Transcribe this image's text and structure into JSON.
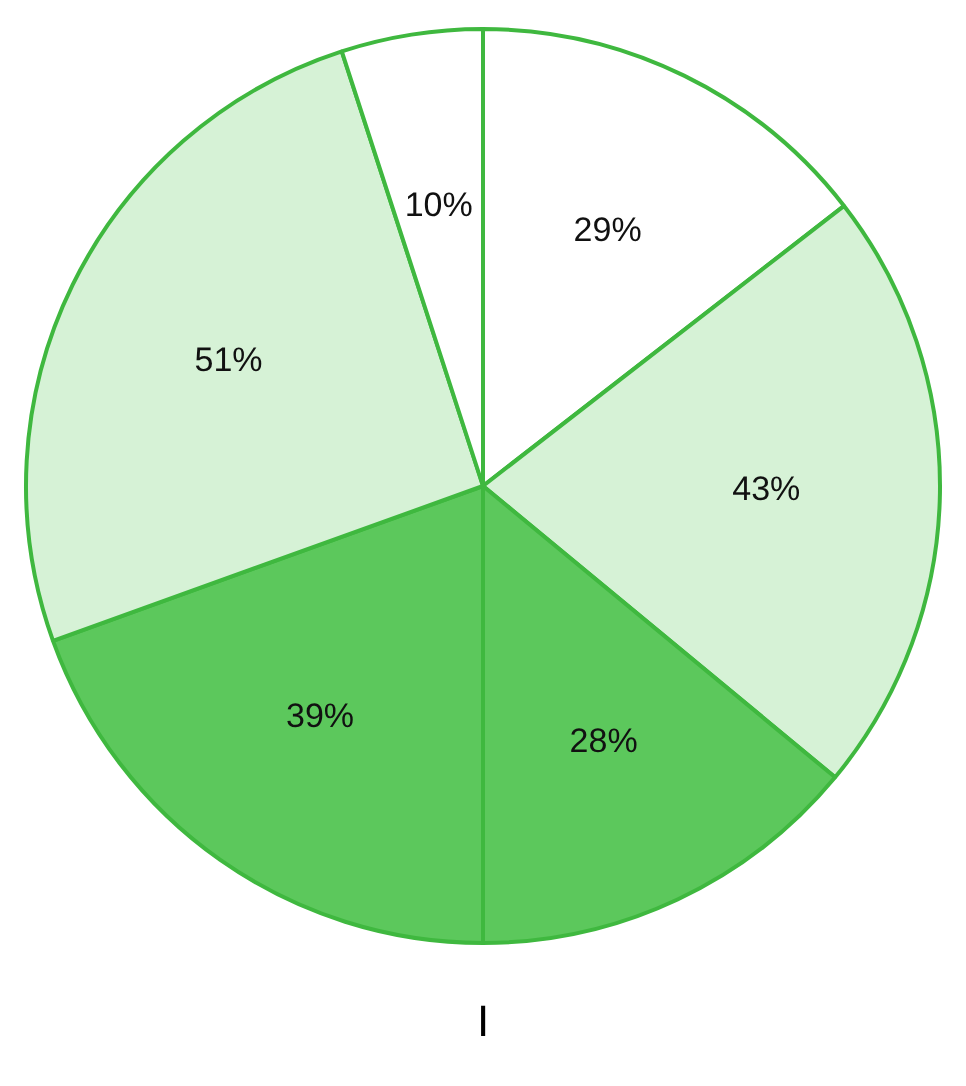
{
  "chart_data": {
    "type": "pie",
    "categories": [
      null,
      null,
      null,
      null,
      null,
      null
    ],
    "values": [
      29,
      43,
      28,
      39,
      51,
      10
    ],
    "colors": [
      "#ffffff",
      "#d6f2d6",
      "#5cc85c",
      "#5cc85c",
      "#d6f2d6",
      "#ffffff"
    ],
    "value_labels": [
      "29%",
      "43%",
      "28%",
      "39%",
      "51%",
      "10%"
    ],
    "annotations": [
      "I"
    ]
  }
}
